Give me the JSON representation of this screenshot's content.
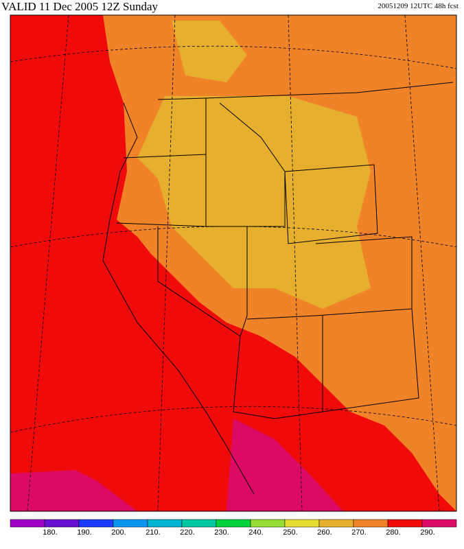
{
  "header": {
    "valid": "VALID 11 Dec 2005 12Z  Sunday",
    "run": "20051209 12UTC  48h fcst"
  },
  "colorbar": {
    "colors": [
      "#a000c8",
      "#6a10d2",
      "#1e3cff",
      "#0a96f0",
      "#00b4d2",
      "#00c8a0",
      "#00d23c",
      "#96dc32",
      "#e6dc32",
      "#e6af2d",
      "#f08228",
      "#f00a0a",
      "#dc0a64"
    ],
    "labels": [
      "180.",
      "190.",
      "200.",
      "210.",
      "220.",
      "230.",
      "240.",
      "250.",
      "260.",
      "270.",
      "280.",
      "290."
    ]
  }
}
